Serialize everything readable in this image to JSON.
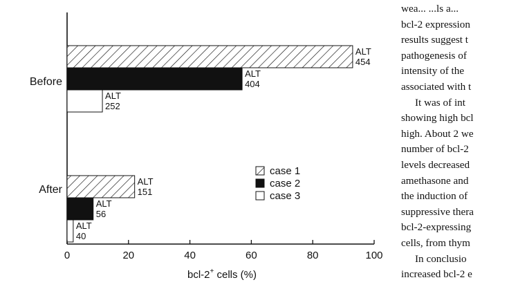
{
  "chart_data": {
    "type": "bar",
    "orientation": "horizontal",
    "categories": [
      "Before",
      "After"
    ],
    "series": [
      {
        "name": "case 1",
        "values": [
          93,
          22
        ],
        "labels": [
          [
            "ALT",
            "454"
          ],
          [
            "ALT",
            "151"
          ]
        ]
      },
      {
        "name": "case 2",
        "values": [
          57,
          8.5
        ],
        "labels": [
          [
            "ALT",
            "404"
          ],
          [
            "ALT",
            "56"
          ]
        ]
      },
      {
        "name": "case 3",
        "values": [
          11.5,
          2
        ],
        "labels": [
          [
            "ALT",
            "252"
          ],
          [
            "ALT",
            "40"
          ]
        ]
      }
    ],
    "xlabel_prefix": "bcl-2",
    "xlabel_sup": "+",
    "xlabel_suffix": " cells (%)",
    "xlim": [
      0,
      100
    ],
    "xticks": [
      "0",
      "20",
      "40",
      "60",
      "80",
      "100"
    ],
    "legend_position": "right-center",
    "series_fills": [
      "hatch",
      "#111111",
      "#ffffff"
    ]
  },
  "text_lines": [
    "wea... ...ls a...",
    "bcl-2 expression",
    "results suggest t",
    "pathogenesis of",
    "intensity of the",
    "associated with t",
    "It was of int",
    "showing high bcl",
    "high. About 2 we",
    "number of bcl-2",
    "levels decreased",
    "amethasone and",
    "the induction of",
    "suppressive thera",
    "bcl-2-expressing",
    "cells, from thym",
    "In conclusio",
    "increased bcl-2 e"
  ],
  "text_indents": [
    6,
    16
  ]
}
